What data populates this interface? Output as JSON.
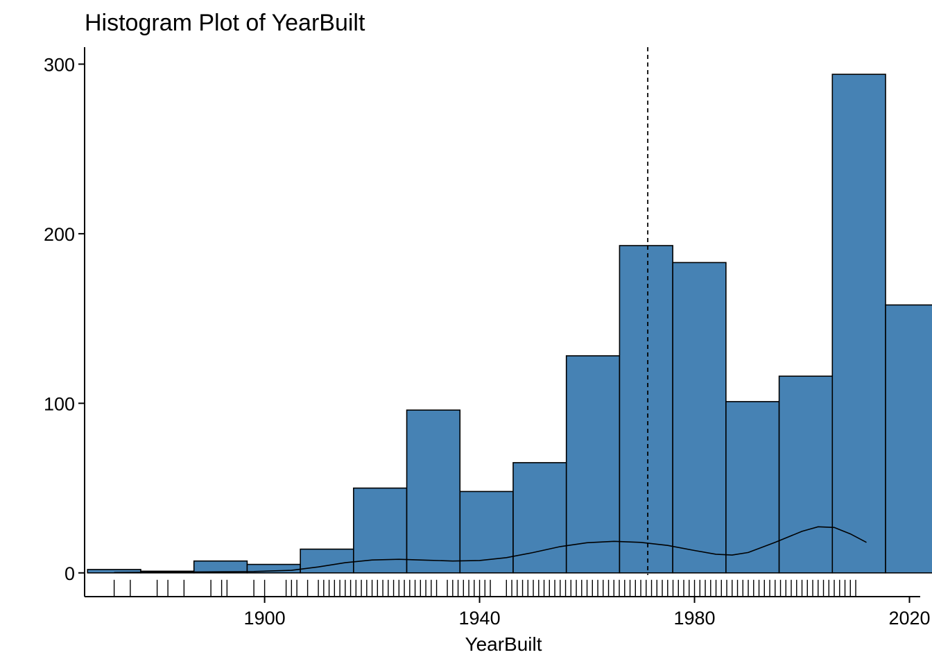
{
  "colors": {
    "bar_fill": "#4682B4",
    "bar_stroke": "#000000",
    "axis": "#000000",
    "background": "#FFFFFF"
  },
  "chart_data": {
    "type": "histogram",
    "title": "Histogram Plot of YearBuilt",
    "xlabel": "YearBuilt",
    "ylabel": "",
    "xlim": [
      1866.5,
      2022
    ],
    "ylim": [
      -14,
      310
    ],
    "x_ticks": [
      1900,
      1940,
      1980,
      2020
    ],
    "y_ticks": [
      0,
      100,
      200,
      300
    ],
    "bins": [
      {
        "start": 1867.05,
        "end": 1876.95,
        "count": 2
      },
      {
        "start": 1876.95,
        "end": 1886.85,
        "count": 1
      },
      {
        "start": 1886.85,
        "end": 1896.75,
        "count": 7
      },
      {
        "start": 1896.75,
        "end": 1906.65,
        "count": 5
      },
      {
        "start": 1906.65,
        "end": 1916.55,
        "count": 14
      },
      {
        "start": 1916.55,
        "end": 1926.45,
        "count": 50
      },
      {
        "start": 1926.45,
        "end": 1936.35,
        "count": 96
      },
      {
        "start": 1936.35,
        "end": 1946.25,
        "count": 48
      },
      {
        "start": 1946.25,
        "end": 1956.15,
        "count": 65
      },
      {
        "start": 1956.15,
        "end": 1966.05,
        "count": 128
      },
      {
        "start": 1966.05,
        "end": 1975.95,
        "count": 193
      },
      {
        "start": 1975.95,
        "end": 1985.85,
        "count": 183
      },
      {
        "start": 1985.85,
        "end": 1995.75,
        "count": 101
      },
      {
        "start": 1995.75,
        "end": 2005.65,
        "count": 116
      },
      {
        "start": 2005.65,
        "end": 2015.55,
        "count": 294
      },
      {
        "start": 2015.55,
        "end": 2025.45,
        "count": 158
      }
    ],
    "mean_line": {
      "x": 1971.3,
      "style": "dashed"
    },
    "density_curve": [
      [
        1872,
        0.2
      ],
      [
        1880,
        0.4
      ],
      [
        1890,
        0.6
      ],
      [
        1898,
        0.8
      ],
      [
        1905,
        1.5
      ],
      [
        1910,
        3.5
      ],
      [
        1915,
        6
      ],
      [
        1920,
        7.6
      ],
      [
        1925,
        8
      ],
      [
        1930,
        7.5
      ],
      [
        1935,
        7
      ],
      [
        1940,
        7.3
      ],
      [
        1945,
        9
      ],
      [
        1950,
        12
      ],
      [
        1955,
        15.5
      ],
      [
        1960,
        17.8
      ],
      [
        1965,
        18.6
      ],
      [
        1970,
        18
      ],
      [
        1975,
        16.2
      ],
      [
        1980,
        13.2
      ],
      [
        1984,
        11
      ],
      [
        1987,
        10.5
      ],
      [
        1990,
        12
      ],
      [
        1995,
        18
      ],
      [
        2000,
        24.5
      ],
      [
        2003,
        27.2
      ],
      [
        2006,
        26.8
      ],
      [
        2009,
        23
      ],
      [
        2012,
        18
      ]
    ],
    "rug_years": [
      1872,
      1875,
      1880,
      1882,
      1885,
      1890,
      1892,
      1893,
      1898,
      1900,
      1904,
      1905,
      1906,
      1908,
      1910,
      1911,
      1912,
      1913,
      1914,
      1915,
      1916,
      1917,
      1918,
      1919,
      1920,
      1921,
      1922,
      1923,
      1924,
      1925,
      1926,
      1927,
      1928,
      1929,
      1930,
      1931,
      1932,
      1934,
      1935,
      1936,
      1937,
      1938,
      1939,
      1940,
      1941,
      1942,
      1945,
      1946,
      1947,
      1948,
      1949,
      1950,
      1951,
      1952,
      1953,
      1954,
      1955,
      1956,
      1957,
      1958,
      1959,
      1960,
      1961,
      1962,
      1963,
      1964,
      1965,
      1966,
      1967,
      1968,
      1969,
      1970,
      1971,
      1972,
      1973,
      1974,
      1975,
      1976,
      1977,
      1978,
      1979,
      1980,
      1981,
      1982,
      1983,
      1984,
      1985,
      1986,
      1987,
      1988,
      1989,
      1990,
      1991,
      1992,
      1993,
      1994,
      1995,
      1996,
      1997,
      1998,
      1999,
      2000,
      2001,
      2002,
      2003,
      2004,
      2005,
      2006,
      2007,
      2008,
      2009,
      2010
    ],
    "grid": false,
    "legend": "none"
  }
}
